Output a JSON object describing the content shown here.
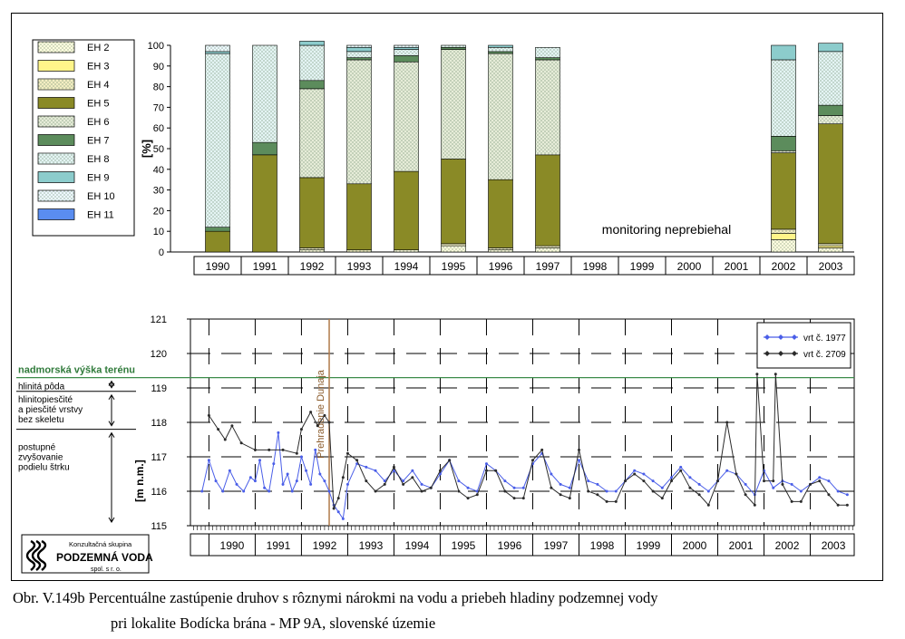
{
  "caption": {
    "line1": "Obr. V.149b Percentuálne zastúpenie druhov s rôznymi nárokmi na vodu a priebeh hladiny podzemnej vody",
    "line2": "pri lokalite Bodícka brána - MP 9A, slovenské územie"
  },
  "logo": {
    "line1": "Konzultačná skupina",
    "line2": "PODZEMNÁ VODA",
    "line3": "spol. s r. o."
  },
  "chart_data": [
    {
      "type": "bar",
      "stacked": true,
      "ylabel": "[%]",
      "ylim": [
        0,
        100
      ],
      "yticks": [
        0,
        10,
        20,
        30,
        40,
        50,
        60,
        70,
        80,
        90,
        100
      ],
      "categories": [
        "1990",
        "1991",
        "1992",
        "1993",
        "1994",
        "1995",
        "1996",
        "1997",
        "1998",
        "1999",
        "2000",
        "2001",
        "2002",
        "2003"
      ],
      "annotation": "monitoring neprebiehal",
      "legend_position": "left",
      "series": [
        {
          "name": "EH 2",
          "color": "#fffde0",
          "pattern": "dots",
          "values": [
            0,
            0,
            1,
            0,
            1,
            3,
            1,
            2,
            0,
            0,
            0,
            0,
            6,
            2
          ]
        },
        {
          "name": "EH 3",
          "color": "#fff58a",
          "pattern": "solid",
          "values": [
            0,
            0,
            0,
            0,
            0,
            0,
            0,
            0,
            0,
            0,
            0,
            0,
            3,
            1
          ]
        },
        {
          "name": "EH 4",
          "color": "#f3edc2",
          "pattern": "dots",
          "values": [
            0,
            0,
            1,
            1,
            0,
            1,
            1,
            1,
            0,
            0,
            0,
            0,
            2,
            1
          ]
        },
        {
          "name": "EH 5",
          "color": "#8a8a26",
          "pattern": "solid",
          "values": [
            10,
            47,
            34,
            32,
            38,
            41,
            33,
            44,
            0,
            0,
            0,
            0,
            37,
            58
          ]
        },
        {
          "name": "EH 6",
          "color": "#e6ecd8",
          "pattern": "dots",
          "values": [
            0,
            0,
            43,
            60,
            53,
            53,
            61,
            46,
            0,
            0,
            0,
            0,
            1,
            4
          ]
        },
        {
          "name": "EH 7",
          "color": "#5c8c5c",
          "pattern": "solid",
          "values": [
            2,
            6,
            4,
            1,
            3,
            1,
            1,
            1,
            0,
            0,
            0,
            0,
            7,
            5
          ]
        },
        {
          "name": "EH 8",
          "color": "#e4f4f4",
          "pattern": "dots",
          "values": [
            84,
            47,
            17,
            3,
            3,
            1,
            2,
            5,
            0,
            0,
            0,
            0,
            37,
            26
          ]
        },
        {
          "name": "EH 9",
          "color": "#8ccccc",
          "pattern": "solid",
          "values": [
            1,
            0,
            2,
            2,
            1,
            0,
            1,
            0,
            0,
            0,
            0,
            0,
            7,
            4
          ]
        },
        {
          "name": "EH 10",
          "color": "#eef8ff",
          "pattern": "dots",
          "values": [
            3,
            0,
            0,
            1,
            1,
            0,
            0,
            0,
            0,
            0,
            0,
            0,
            0,
            0
          ]
        },
        {
          "name": "EH 11",
          "color": "#5a8df0",
          "pattern": "solid",
          "values": [
            0,
            0,
            0,
            0,
            0,
            0,
            0,
            0,
            0,
            0,
            0,
            0,
            0,
            0
          ]
        }
      ]
    },
    {
      "type": "line",
      "ylabel": "[m n.m.]",
      "ylim": [
        115,
        121
      ],
      "yticks": [
        115,
        116,
        117,
        118,
        119,
        120,
        121
      ],
      "xlim": [
        1989.6,
        2003.95
      ],
      "x_tick_labels": [
        "1990",
        "1991",
        "1992",
        "1993",
        "1994",
        "1995",
        "1996",
        "1997",
        "1998",
        "1999",
        "2000",
        "2001",
        "2002",
        "2003"
      ],
      "terrain_level": 119.3,
      "terrain_label": "nadmorská výška terénu",
      "event": {
        "x": 1992.6,
        "label": "Prehradenie Dunaja"
      },
      "soil_layers": [
        {
          "label": "hlinitá pôda",
          "top": 119.3,
          "bottom": 118.9
        },
        {
          "label": "hlinitopiesčité a piesčité vrstvy bez skeletu",
          "top": 118.9,
          "bottom": 117.8
        },
        {
          "label": "postupné zvyšovanie podielu štrku",
          "top": 117.8,
          "bottom": 115
        }
      ],
      "series": [
        {
          "name": "vrt č. 1977",
          "color": "#4a5ee8",
          "x": [
            1989.85,
            1990.0,
            1990.15,
            1990.3,
            1990.45,
            1990.6,
            1990.75,
            1990.9,
            1991.0,
            1991.1,
            1991.2,
            1991.3,
            1991.4,
            1991.5,
            1991.6,
            1991.7,
            1991.8,
            1991.9,
            1992.0,
            1992.1,
            1992.2,
            1992.3,
            1992.4,
            1992.5,
            1992.6,
            1992.7,
            1992.8,
            1992.9,
            1993.0,
            1993.2,
            1993.4,
            1993.6,
            1993.8,
            1994.0,
            1994.2,
            1994.4,
            1994.6,
            1994.8,
            1995.0,
            1995.2,
            1995.4,
            1995.6,
            1995.8,
            1996.0,
            1996.2,
            1996.4,
            1996.6,
            1996.8,
            1997.0,
            1997.2,
            1997.4,
            1997.6,
            1997.8,
            1998.0,
            1998.2,
            1998.4,
            1998.6,
            1998.8,
            1999.0,
            1999.2,
            1999.4,
            1999.6,
            1999.8,
            2000.0,
            2000.2,
            2000.4,
            2000.6,
            2000.8,
            2001.0,
            2001.2,
            2001.4,
            2001.6,
            2001.8,
            2002.0,
            2002.2,
            2002.4,
            2002.6,
            2002.8,
            2003.0,
            2003.2,
            2003.4,
            2003.6,
            2003.8
          ],
          "y": [
            116.0,
            116.9,
            116.3,
            116.0,
            116.6,
            116.2,
            116.0,
            116.4,
            116.3,
            116.9,
            116.1,
            116.0,
            116.8,
            117.7,
            116.2,
            116.5,
            116.0,
            116.3,
            117.0,
            116.6,
            116.2,
            117.2,
            116.5,
            116.3,
            116.0,
            115.6,
            115.4,
            115.2,
            116.2,
            116.8,
            116.7,
            116.6,
            116.3,
            116.6,
            116.3,
            116.6,
            116.2,
            116.1,
            116.5,
            116.9,
            116.3,
            116.1,
            116.0,
            116.8,
            116.6,
            116.3,
            116.1,
            116.1,
            116.8,
            117.1,
            116.5,
            116.2,
            116.1,
            116.9,
            116.3,
            116.2,
            116.0,
            116.0,
            116.3,
            116.6,
            116.5,
            116.3,
            116.1,
            116.4,
            116.7,
            116.4,
            116.2,
            116.0,
            116.3,
            116.6,
            116.5,
            116.2,
            115.9,
            116.6,
            116.1,
            116.3,
            116.2,
            116.0,
            116.2,
            116.4,
            116.3,
            116.0,
            115.9
          ]
        },
        {
          "name": "vrt č. 2709",
          "color": "#2b2b2b",
          "x": [
            1990.0,
            1990.2,
            1990.35,
            1990.5,
            1990.7,
            1991.0,
            1991.3,
            1991.6,
            1991.9,
            1992.0,
            1992.2,
            1992.35,
            1992.5,
            1992.6,
            1992.7,
            1992.8,
            1992.9,
            1993.0,
            1993.2,
            1993.4,
            1993.6,
            1993.8,
            1994.0,
            1994.2,
            1994.4,
            1994.6,
            1994.8,
            1995.0,
            1995.2,
            1995.4,
            1995.6,
            1995.8,
            1996.0,
            1996.2,
            1996.4,
            1996.6,
            1996.8,
            1997.0,
            1997.2,
            1997.4,
            1997.6,
            1997.8,
            1998.0,
            1998.2,
            1998.4,
            1998.6,
            1998.8,
            1999.0,
            1999.2,
            1999.4,
            1999.6,
            1999.8,
            2000.0,
            2000.2,
            2000.4,
            2000.6,
            2000.8,
            2001.0,
            2001.2,
            2001.4,
            2001.6,
            2001.8,
            2001.85,
            2002.0,
            2002.2,
            2002.25,
            2002.4,
            2002.6,
            2002.8,
            2003.0,
            2003.2,
            2003.4,
            2003.6,
            2003.8
          ],
          "y": [
            118.2,
            117.8,
            117.5,
            117.9,
            117.4,
            117.2,
            117.2,
            117.2,
            117.1,
            117.8,
            118.3,
            117.9,
            118.2,
            118.0,
            115.5,
            115.8,
            116.4,
            117.1,
            116.9,
            116.3,
            116.0,
            116.2,
            116.7,
            116.2,
            116.4,
            116.0,
            116.1,
            116.6,
            116.9,
            116.0,
            115.8,
            115.9,
            116.6,
            116.6,
            116.0,
            115.8,
            115.8,
            116.9,
            117.2,
            116.1,
            115.9,
            115.8,
            117.2,
            116.0,
            115.9,
            115.7,
            115.7,
            116.3,
            116.5,
            116.3,
            116.0,
            115.8,
            116.3,
            116.6,
            116.1,
            115.9,
            115.6,
            116.3,
            118.0,
            116.5,
            115.9,
            115.6,
            119.4,
            116.3,
            116.3,
            119.4,
            116.2,
            115.7,
            115.7,
            116.2,
            116.3,
            115.9,
            115.6,
            115.6
          ]
        }
      ]
    }
  ]
}
